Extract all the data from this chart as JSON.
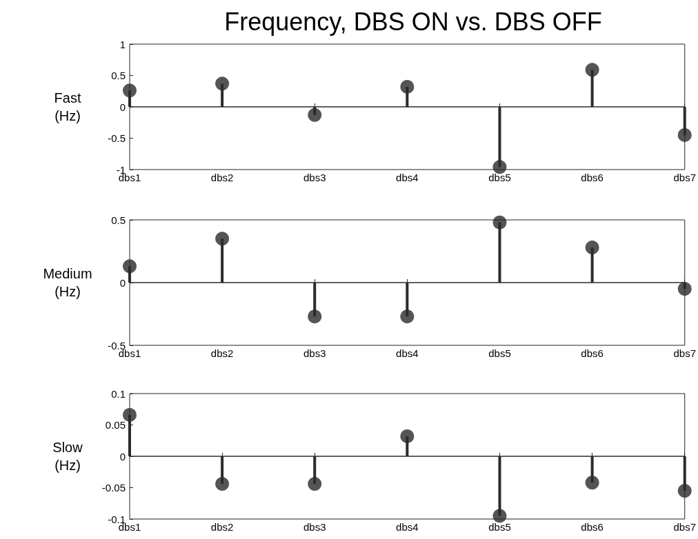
{
  "chart_data": [
    {
      "type": "lollipop",
      "title": "Frequency, DBS ON vs. DBS OFF",
      "ylabel": "Fast (Hz)",
      "categories": [
        "dbs1",
        "dbs2",
        "dbs3",
        "dbs4",
        "dbs5",
        "dbs6",
        "dbs7"
      ],
      "ylim": [
        -1,
        1
      ],
      "yticks": [
        -1,
        -0.5,
        0,
        0.5,
        1
      ],
      "marker": "circle",
      "grid": false,
      "series": [
        {
          "color": "#2b2b2b",
          "values": [
            0.26,
            0.37,
            -0.13,
            0.32,
            -0.96,
            0.59,
            -0.45
          ]
        }
      ],
      "ref_lines": [
        {
          "axis": "y",
          "value": 0,
          "color": "#2b2b2b"
        }
      ]
    },
    {
      "type": "lollipop",
      "ylabel": "Medium (Hz)",
      "categories": [
        "dbs1",
        "dbs2",
        "dbs3",
        "dbs4",
        "dbs5",
        "dbs6",
        "dbs7"
      ],
      "ylim": [
        -0.5,
        0.5
      ],
      "yticks": [
        -0.5,
        0,
        0.5
      ],
      "marker": "circle",
      "grid": false,
      "series": [
        {
          "color": "#2b2b2b",
          "values": [
            0.13,
            0.35,
            -0.27,
            -0.27,
            0.48,
            0.28,
            -0.05
          ]
        }
      ],
      "ref_lines": [
        {
          "axis": "y",
          "value": 0,
          "color": "#2b2b2b"
        }
      ]
    },
    {
      "type": "lollipop",
      "ylabel": "Slow (Hz)",
      "categories": [
        "dbs1",
        "dbs2",
        "dbs3",
        "dbs4",
        "dbs5",
        "dbs6",
        "dbs7"
      ],
      "ylim": [
        -0.1,
        0.1
      ],
      "yticks": [
        -0.1,
        -0.05,
        0,
        0.05,
        0.1
      ],
      "marker": "circle",
      "grid": false,
      "series": [
        {
          "color": "#2b2b2b",
          "values": [
            0.066,
            -0.044,
            -0.044,
            0.032,
            -0.095,
            -0.042,
            -0.055
          ]
        }
      ],
      "ref_lines": [
        {
          "axis": "y",
          "value": 0,
          "color": "#2b2b2b"
        }
      ]
    }
  ]
}
